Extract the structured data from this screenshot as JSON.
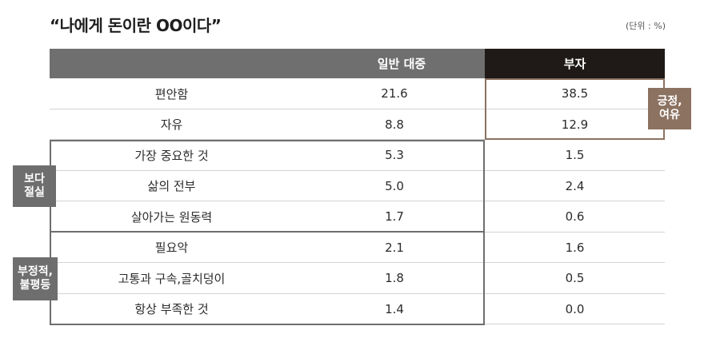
{
  "title": "“나에게 돈이란 OO이다”",
  "unit": "(단위 : %)",
  "colors": {
    "header_gray": "#6f6f6f",
    "header_dark": "#1f1a17",
    "accent_brown": "#8c7261",
    "group_gray": "#6e6e6e"
  },
  "chart_data": {
    "type": "table",
    "columns": [
      "",
      "일반 대중",
      "부자"
    ],
    "rows": [
      {
        "label": "편안함",
        "general": "21.6",
        "rich": "38.5"
      },
      {
        "label": "자유",
        "general": "8.8",
        "rich": "12.9"
      },
      {
        "label": "가장 중요한 것",
        "general": "5.3",
        "rich": "1.5"
      },
      {
        "label": "삶의 전부",
        "general": "5.0",
        "rich": "2.4"
      },
      {
        "label": "살아가는 원동력",
        "general": "1.7",
        "rich": "0.6"
      },
      {
        "label": "필요악",
        "general": "2.1",
        "rich": "1.6"
      },
      {
        "label": "고통과 구속,골치덩이",
        "general": "1.8",
        "rich": "0.5"
      },
      {
        "label": "항상 부족한 것",
        "general": "1.4",
        "rich": "0.0"
      }
    ],
    "tags": {
      "positive": [
        "긍정,",
        "여유"
      ],
      "real": [
        "보다",
        "절실"
      ],
      "negative": [
        "부정적,",
        "불평등"
      ]
    }
  }
}
